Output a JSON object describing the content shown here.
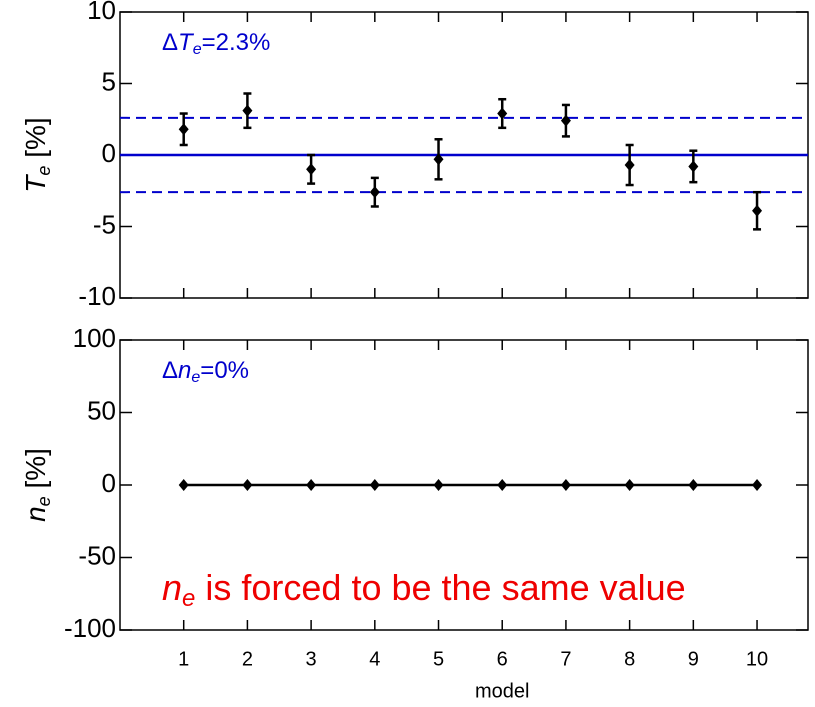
{
  "chart_data": [
    {
      "type": "errorbar",
      "ylabel": [
        "T",
        "e",
        " [%]"
      ],
      "annotation": [
        "Δ",
        "T",
        "e",
        "=2.3%"
      ],
      "x": [
        1,
        2,
        3,
        4,
        5,
        6,
        7,
        8,
        9,
        10
      ],
      "values": [
        1.8,
        3.1,
        -1.0,
        -2.6,
        -0.3,
        2.9,
        2.4,
        -0.7,
        -0.8,
        -3.9
      ],
      "errors": [
        1.1,
        1.2,
        1.0,
        1.0,
        1.4,
        1.0,
        1.1,
        1.4,
        1.1,
        1.3
      ],
      "color": "#000000",
      "line_color": "#0000cc",
      "zero_line": 0,
      "dashed_lines": [
        2.6,
        -2.6
      ],
      "xlim": [
        0,
        10.8
      ],
      "xticks": [
        1,
        2,
        3,
        4,
        5,
        6,
        7,
        8,
        9,
        10
      ],
      "ylim": [
        -10,
        10
      ],
      "yticks": [
        -10,
        -5,
        0,
        5,
        10
      ]
    },
    {
      "type": "line",
      "ylabel": [
        "n",
        "e",
        " [%]"
      ],
      "annotation": [
        "Δ",
        "n",
        "e",
        "=0%"
      ],
      "note": [
        "n",
        "e",
        " is forced to be the same value"
      ],
      "note_color": "#ee0000",
      "x": [
        1,
        2,
        3,
        4,
        5,
        6,
        7,
        8,
        9,
        10
      ],
      "values": [
        0,
        0,
        0,
        0,
        0,
        0,
        0,
        0,
        0,
        0
      ],
      "color": "#000000",
      "xlim": [
        0,
        10.8
      ],
      "xticks": [
        1,
        2,
        3,
        4,
        5,
        6,
        7,
        8,
        9,
        10
      ],
      "xlabel": "model",
      "ylim": [
        -100,
        100
      ],
      "yticks": [
        -100,
        -50,
        0,
        50,
        100
      ]
    }
  ]
}
